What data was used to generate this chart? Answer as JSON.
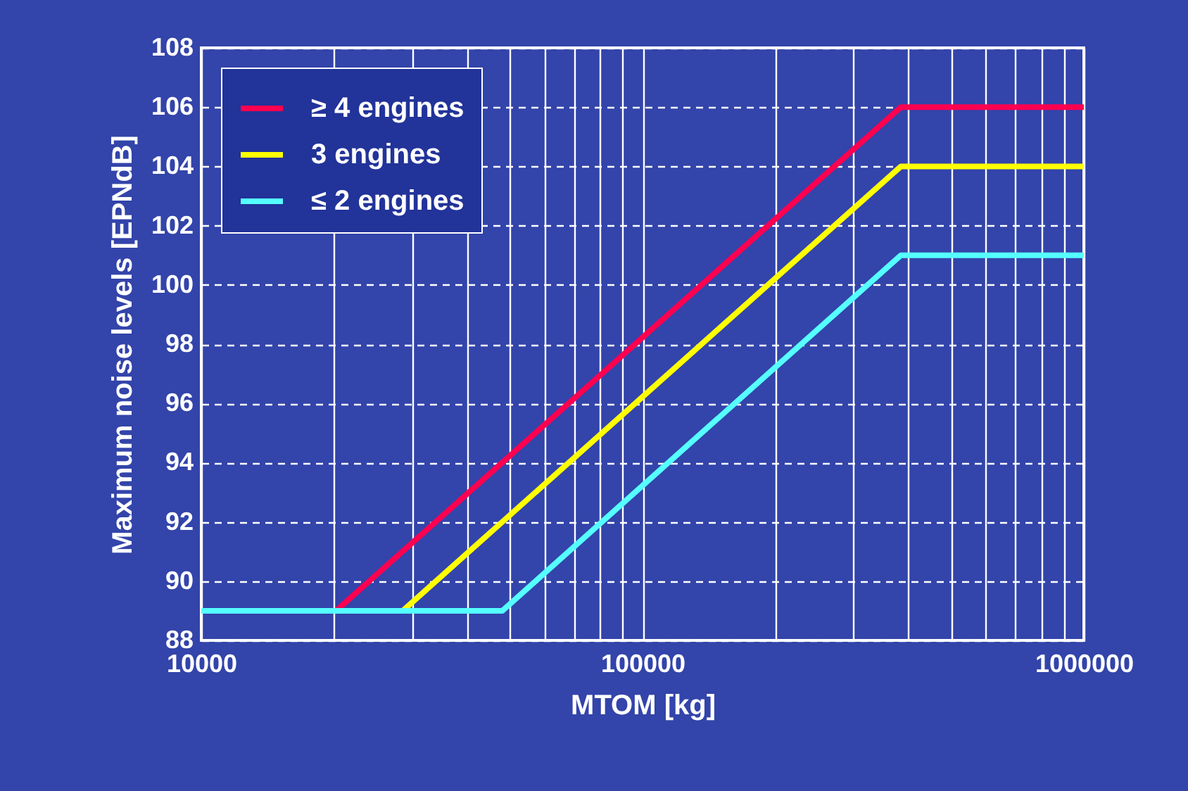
{
  "chart_data": {
    "type": "line",
    "xlabel": "MTOM [kg]",
    "ylabel": "Maximum noise levels [EPNdB]",
    "log": "x",
    "grid": true,
    "legend": "top left",
    "line_style": "solid",
    "marker": "none",
    "xlim": [
      10000,
      1000000
    ],
    "ylim": [
      88,
      108
    ],
    "xticks": [
      10000,
      {
        "value": 20000,
        "label": null
      },
      {
        "value": 30000,
        "label": null
      },
      {
        "value": 40000,
        "label": null
      },
      {
        "value": 50000,
        "label": null
      },
      {
        "value": 60000,
        "label": null
      },
      {
        "value": 70000,
        "label": null
      },
      {
        "value": 80000,
        "label": null
      },
      {
        "value": 90000,
        "label": null
      },
      100000,
      {
        "value": 200000,
        "label": null
      },
      {
        "value": 300000,
        "label": null
      },
      {
        "value": 400000,
        "label": null
      },
      {
        "value": 500000,
        "label": null
      },
      {
        "value": 600000,
        "label": null
      },
      {
        "value": 700000,
        "label": null
      },
      {
        "value": 800000,
        "label": null
      },
      {
        "value": 900000,
        "label": null
      },
      1000000
    ],
    "yticks": [
      88,
      90,
      92,
      94,
      96,
      98,
      100,
      102,
      104,
      106,
      108
    ],
    "series": [
      {
        "name": "≥ 4 engines",
        "color": "#ff0050",
        "x": [
          20200,
          385000,
          1000000
        ],
        "values": [
          89,
          106,
          106
        ]
      },
      {
        "name": "3 engines",
        "color": "#ffff00",
        "x": [
          28600,
          385000,
          1000000
        ],
        "values": [
          89,
          104,
          104
        ]
      },
      {
        "name": "≤ 2 engines",
        "color": "#55ffff",
        "x": [
          10000,
          48100,
          385000,
          1000000
        ],
        "values": [
          89,
          89,
          101,
          101
        ]
      }
    ]
  }
}
